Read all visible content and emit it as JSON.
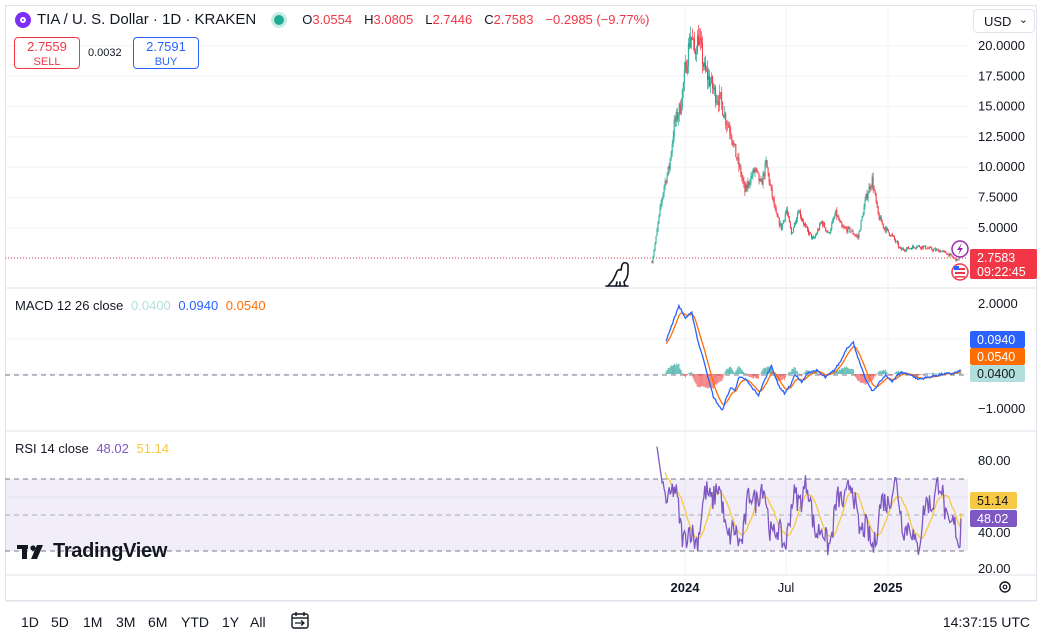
{
  "header": {
    "symbol": "TIA / U. S. Dollar · 1D · KRAKEN",
    "open_label": "O",
    "open": "3.0554",
    "high_label": "H",
    "high": "3.0805",
    "low_label": "L",
    "low": "2.7446",
    "close_label": "C",
    "close": "2.7583",
    "change": "−0.2985 (−9.77%)",
    "currency": "USD"
  },
  "trade": {
    "sell_price": "2.7559",
    "sell_label": "SELL",
    "spread": "0.0032",
    "buy_price": "2.7591",
    "buy_label": "BUY"
  },
  "price_label": {
    "value": "2.7583",
    "countdown": "09:22:45"
  },
  "macd_legend": {
    "title": "MACD 12 26 close",
    "histogram": "0.0400",
    "macd": "0.0940",
    "signal": "0.0540"
  },
  "rsi_legend": {
    "title": "RSI 14 close",
    "rsi": "48.02",
    "ma": "51.14"
  },
  "brand": "TradingView",
  "ranges": [
    "1D",
    "5D",
    "1M",
    "3M",
    "6M",
    "YTD",
    "1Y",
    "All"
  ],
  "clock": "14:37:15 UTC",
  "colors": {
    "up": "#22ab94",
    "down": "#f23645",
    "macd": "#2962ff",
    "signal": "#ff6d00",
    "rsi": "#7e57c2",
    "rsi_ma": "#f7c843",
    "accent": "#2962ff"
  },
  "icons": [
    "coin-icon",
    "live-dot-icon",
    "chevron-down-icon",
    "dino-icon",
    "lightning-icon",
    "flag-icon",
    "settings-icon",
    "date-range-icon"
  ],
  "chart_data": [
    {
      "type": "candlestick",
      "series": [
        {
          "name": "TIA / U. S. Dollar"
        }
      ],
      "x_ticks": [
        "2024",
        "Jul",
        "2025"
      ],
      "y_ticks": [
        "20.0000",
        "17.5000",
        "15.0000",
        "12.5000",
        "10.0000",
        "7.5000",
        "5.0000"
      ],
      "ylim": [
        0.5,
        22.2
      ],
      "last_price": 2.7583,
      "anchors": [
        [
          0,
          2.2
        ],
        [
          4,
          4.2
        ],
        [
          8,
          6.5
        ],
        [
          12,
          8.5
        ],
        [
          17,
          10.0
        ],
        [
          22,
          13.5
        ],
        [
          28,
          15.0
        ],
        [
          33,
          18.0
        ],
        [
          38,
          21.0
        ],
        [
          42,
          19.5
        ],
        [
          46,
          20.8
        ],
        [
          52,
          18.0
        ],
        [
          58,
          17.0
        ],
        [
          63,
          16.0
        ],
        [
          68,
          15.5
        ],
        [
          73,
          14.0
        ],
        [
          78,
          13.0
        ],
        [
          83,
          11.0
        ],
        [
          88,
          9.5
        ],
        [
          92,
          8.0
        ],
        [
          97,
          9.0
        ],
        [
          102,
          9.8
        ],
        [
          108,
          8.5
        ],
        [
          113,
          10.3
        ],
        [
          118,
          8.0
        ],
        [
          123,
          6.0
        ],
        [
          128,
          5.0
        ],
        [
          133,
          6.5
        ],
        [
          138,
          4.5
        ],
        [
          145,
          6.5
        ],
        [
          152,
          5.0
        ],
        [
          160,
          4.0
        ],
        [
          168,
          5.5
        ],
        [
          175,
          4.5
        ],
        [
          182,
          6.2
        ],
        [
          188,
          5.0
        ],
        [
          196,
          4.8
        ],
        [
          204,
          4.2
        ],
        [
          212,
          7.5
        ],
        [
          218,
          9.0
        ],
        [
          224,
          6.0
        ],
        [
          230,
          5.0
        ],
        [
          238,
          4.3
        ],
        [
          246,
          3.2
        ],
        [
          254,
          3.3
        ],
        [
          262,
          3.5
        ],
        [
          270,
          3.4
        ],
        [
          278,
          3.2
        ],
        [
          286,
          3.1
        ],
        [
          294,
          2.8
        ],
        [
          302,
          2.3
        ],
        [
          306,
          2.76
        ]
      ]
    },
    {
      "type": "line",
      "series": [
        {
          "name": "MACD"
        },
        {
          "name": "Signal"
        },
        {
          "name": "Histogram"
        }
      ],
      "y_ticks": [
        "2.0000",
        "−1.0000"
      ],
      "ylim": [
        -1.52,
        2.37
      ],
      "last": {
        "histogram": 0.04,
        "macd": 0.094,
        "signal": 0.054
      },
      "macd_anchors": [
        [
          0,
          0.95
        ],
        [
          6,
          1.45
        ],
        [
          12,
          1.95
        ],
        [
          18,
          1.6
        ],
        [
          24,
          1.75
        ],
        [
          30,
          0.9
        ],
        [
          36,
          0.3
        ],
        [
          40,
          -0.2
        ],
        [
          44,
          -0.65
        ],
        [
          48,
          -0.85
        ],
        [
          52,
          -1.05
        ],
        [
          56,
          -0.7
        ],
        [
          60,
          -0.4
        ],
        [
          64,
          -0.45
        ],
        [
          68,
          -0.1
        ],
        [
          74,
          -0.15
        ],
        [
          80,
          -0.4
        ],
        [
          86,
          -0.6
        ],
        [
          92,
          -0.15
        ],
        [
          98,
          0.25
        ],
        [
          104,
          -0.3
        ],
        [
          110,
          -0.55
        ],
        [
          116,
          -0.3
        ],
        [
          120,
          0.0
        ],
        [
          126,
          -0.25
        ],
        [
          132,
          0.05
        ],
        [
          140,
          0.1
        ],
        [
          148,
          -0.1
        ],
        [
          156,
          0.1
        ],
        [
          162,
          0.35
        ],
        [
          168,
          0.75
        ],
        [
          174,
          0.9
        ],
        [
          180,
          0.3
        ],
        [
          186,
          -0.2
        ],
        [
          192,
          -0.5
        ],
        [
          198,
          -0.25
        ],
        [
          204,
          -0.05
        ],
        [
          210,
          -0.2
        ],
        [
          218,
          0.05
        ],
        [
          226,
          0.0
        ],
        [
          234,
          -0.15
        ],
        [
          242,
          -0.1
        ],
        [
          250,
          -0.05
        ],
        [
          258,
          0.0
        ],
        [
          266,
          0.02
        ],
        [
          274,
          0.09
        ]
      ]
    },
    {
      "type": "line",
      "series": [
        {
          "name": "RSI"
        },
        {
          "name": "RSI MA"
        }
      ],
      "y_ticks": [
        "80.00",
        "40.00",
        "20.00"
      ],
      "ylim": [
        17.5,
        91.4
      ],
      "band": [
        30,
        70
      ],
      "mid": 50,
      "last": {
        "rsi": 48.02,
        "ma": 51.14
      }
    }
  ]
}
